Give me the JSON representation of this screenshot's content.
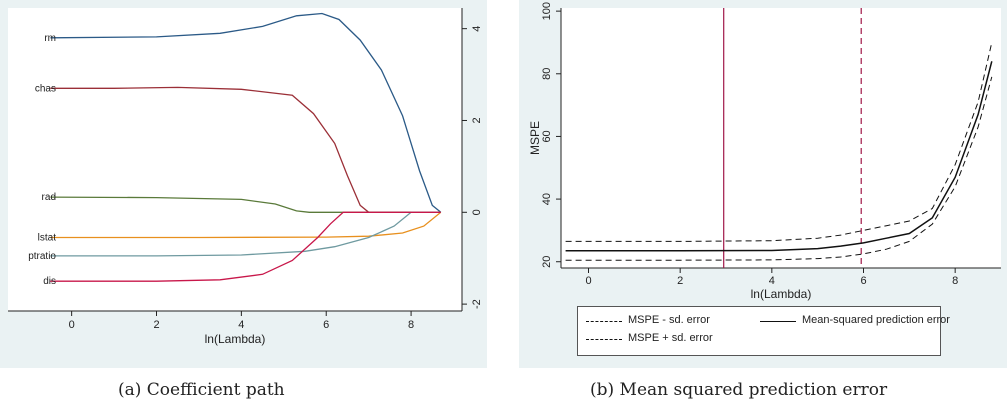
{
  "chart_data": [
    {
      "type": "line",
      "xlabel": "ln(Lambda)",
      "x_ticks": [
        0,
        2,
        4,
        6,
        8
      ],
      "y_ticks": [
        -2,
        0,
        2,
        4
      ],
      "xlim": [
        -1.5,
        9.2
      ],
      "ylim": [
        -2.15,
        4.45
      ],
      "y_axis_position": "right",
      "grid": false,
      "series": [
        {
          "name": "rm",
          "color": "#2b5a87",
          "x": [
            -0.5,
            2.0,
            3.5,
            4.5,
            5.3,
            5.9,
            6.3,
            6.8,
            7.3,
            7.8,
            8.2,
            8.5,
            8.7
          ],
          "y": [
            3.8,
            3.82,
            3.9,
            4.05,
            4.28,
            4.33,
            4.2,
            3.75,
            3.1,
            2.1,
            0.9,
            0.15,
            0.0
          ]
        },
        {
          "name": "chas",
          "color": "#9b2f37",
          "x": [
            -0.5,
            1.0,
            2.5,
            4.0,
            5.2,
            5.7,
            6.2,
            6.5,
            6.8,
            7.0,
            8.7
          ],
          "y": [
            2.7,
            2.7,
            2.72,
            2.68,
            2.55,
            2.15,
            1.5,
            0.8,
            0.15,
            0.0,
            0.0
          ]
        },
        {
          "name": "rad",
          "color": "#5a7a3a",
          "x": [
            -0.5,
            2.0,
            4.0,
            4.8,
            5.3,
            5.6,
            8.7
          ],
          "y": [
            0.33,
            0.32,
            0.28,
            0.18,
            0.03,
            0.0,
            0.0
          ]
        },
        {
          "name": "lstat",
          "color": "#e8901e",
          "x": [
            -0.5,
            3.0,
            6.0,
            7.0,
            7.8,
            8.3,
            8.7
          ],
          "y": [
            -0.55,
            -0.55,
            -0.54,
            -0.52,
            -0.45,
            -0.3,
            0.0
          ]
        },
        {
          "name": "ptratio",
          "color": "#6f9aa0",
          "x": [
            -0.5,
            2.0,
            4.0,
            5.5,
            6.2,
            7.0,
            7.6,
            8.0,
            8.7
          ],
          "y": [
            -0.95,
            -0.95,
            -0.93,
            -0.85,
            -0.75,
            -0.55,
            -0.3,
            0.0,
            0.0
          ]
        },
        {
          "name": "dis",
          "color": "#c8174a",
          "x": [
            -0.5,
            2.0,
            3.5,
            4.5,
            5.2,
            5.8,
            6.1,
            6.4,
            8.7
          ],
          "y": [
            -1.5,
            -1.5,
            -1.47,
            -1.35,
            -1.05,
            -0.55,
            -0.25,
            0.0,
            0.0
          ]
        }
      ]
    },
    {
      "type": "line",
      "xlabel": "ln(Lambda)",
      "ylabel": "MSPE",
      "x_ticks": [
        0,
        2,
        4,
        6,
        8
      ],
      "y_ticks": [
        20,
        40,
        60,
        80,
        100
      ],
      "xlim": [
        -0.6,
        9.0
      ],
      "ylim": [
        18,
        101
      ],
      "grid": false,
      "vlines": [
        {
          "x": 2.95,
          "style": "solid",
          "color": "#a01848"
        },
        {
          "x": 5.95,
          "style": "dashed",
          "color": "#a01848"
        }
      ],
      "series": [
        {
          "name": "MSPE - sd. error",
          "style": "dashed",
          "x": [
            -0.5,
            2,
            4,
            5,
            5.5,
            6,
            6.5,
            7,
            7.5,
            8,
            8.5,
            8.8
          ],
          "y": [
            20.5,
            20.5,
            20.6,
            21,
            21.5,
            22.5,
            24,
            26.5,
            32,
            44,
            63,
            79
          ]
        },
        {
          "name": "Mean-squared prediction error",
          "style": "solid",
          "x": [
            -0.5,
            2,
            4,
            5,
            5.5,
            6,
            6.5,
            7,
            7.5,
            8,
            8.5,
            8.8
          ],
          "y": [
            23.5,
            23.5,
            23.6,
            24.2,
            25,
            26,
            27.5,
            29,
            34,
            47,
            67,
            84
          ]
        },
        {
          "name": "MSPE + sd. error",
          "style": "dashed",
          "x": [
            -0.5,
            2,
            4,
            5,
            5.5,
            6,
            6.5,
            7,
            7.5,
            8,
            8.5,
            8.8
          ],
          "y": [
            26.5,
            26.5,
            26.7,
            27.5,
            28.5,
            30,
            31.5,
            33,
            37,
            51,
            71,
            90
          ]
        }
      ],
      "legend_position": "bottom"
    }
  ],
  "captions": {
    "a": "(a) Coefficient path",
    "b": "(b) Mean squared prediction error"
  },
  "legend": {
    "minus": "MSPE - sd. error",
    "mean": "Mean-squared prediction error",
    "plus": "MSPE + sd. error"
  }
}
